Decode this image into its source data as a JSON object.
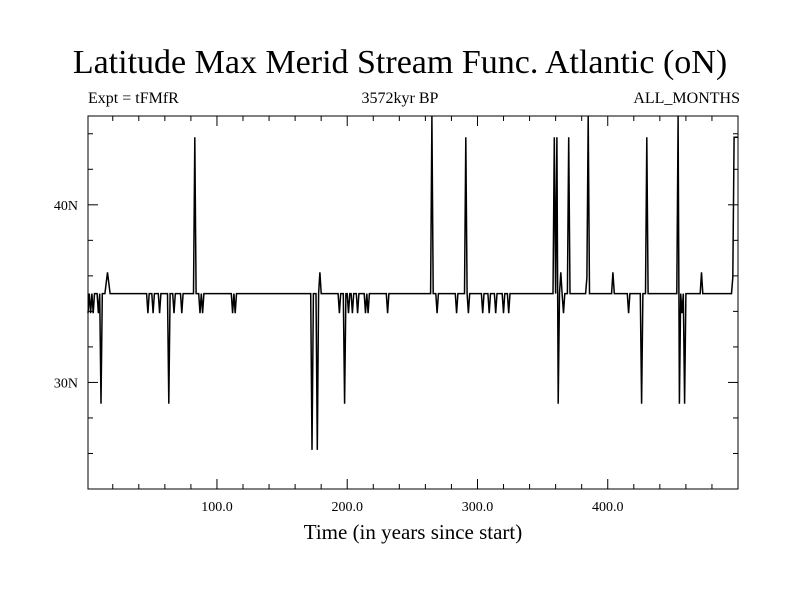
{
  "chart_data": {
    "type": "line",
    "title": "Latitude Max Merid Stream Func. Atlantic (oN)",
    "subtitle_left": "Expt = tFMfR",
    "subtitle_center": "3572kyr BP",
    "subtitle_right": "ALL_MONTHS",
    "xlabel": "Time (in years since start)",
    "ylabel": "",
    "xlim": [
      1,
      500
    ],
    "ylim": [
      24,
      45
    ],
    "x_ticks": [
      {
        "value": 100,
        "label": "100.0"
      },
      {
        "value": 200,
        "label": "200.0"
      },
      {
        "value": 300,
        "label": "300.0"
      },
      {
        "value": 400,
        "label": "400.0"
      }
    ],
    "y_ticks": [
      {
        "value": 30,
        "label": "30N"
      },
      {
        "value": 40,
        "label": "40N"
      }
    ],
    "baseline": 35,
    "series": [
      {
        "points": [
          [
            1,
            33.9
          ],
          [
            2,
            35
          ],
          [
            3,
            33.9
          ],
          [
            4,
            35
          ],
          [
            5,
            33.9
          ],
          [
            6,
            35
          ],
          [
            8,
            35
          ],
          [
            9,
            33.9
          ],
          [
            10,
            35
          ],
          [
            11,
            28.8
          ],
          [
            12,
            35
          ],
          [
            14,
            35
          ],
          [
            16,
            36.2
          ],
          [
            18,
            35
          ],
          [
            46,
            35
          ],
          [
            47,
            33.9
          ],
          [
            48,
            35
          ],
          [
            50,
            35
          ],
          [
            51,
            33.9
          ],
          [
            52,
            35
          ],
          [
            55,
            35
          ],
          [
            56,
            33.9
          ],
          [
            57,
            35
          ],
          [
            62,
            35
          ],
          [
            63,
            28.8
          ],
          [
            64,
            35
          ],
          [
            66,
            35
          ],
          [
            67,
            33.9
          ],
          [
            68,
            35
          ],
          [
            72,
            35
          ],
          [
            73,
            33.9
          ],
          [
            74,
            35
          ],
          [
            82,
            35
          ],
          [
            83,
            43.8
          ],
          [
            84,
            35
          ],
          [
            86,
            35
          ],
          [
            87,
            33.9
          ],
          [
            88,
            35
          ],
          [
            89,
            33.9
          ],
          [
            90,
            35
          ],
          [
            111,
            35
          ],
          [
            112,
            33.9
          ],
          [
            113,
            35
          ],
          [
            114,
            33.9
          ],
          [
            115,
            35
          ],
          [
            172,
            35
          ],
          [
            173,
            26.2
          ],
          [
            174,
            35
          ],
          [
            176,
            35
          ],
          [
            177,
            26.2
          ],
          [
            178,
            35
          ],
          [
            179,
            36.2
          ],
          [
            180,
            35
          ],
          [
            193,
            35
          ],
          [
            194,
            33.9
          ],
          [
            195,
            35
          ],
          [
            197,
            35
          ],
          [
            198,
            28.8
          ],
          [
            199,
            35
          ],
          [
            200,
            35
          ],
          [
            201,
            33.9
          ],
          [
            202,
            35
          ],
          [
            203,
            35
          ],
          [
            204,
            33.9
          ],
          [
            205,
            35
          ],
          [
            207,
            35
          ],
          [
            208,
            33.9
          ],
          [
            209,
            35
          ],
          [
            213,
            35
          ],
          [
            214,
            33.9
          ],
          [
            215,
            35
          ],
          [
            216,
            33.9
          ],
          [
            217,
            35
          ],
          [
            230,
            35
          ],
          [
            231,
            33.9
          ],
          [
            232,
            35
          ],
          [
            264,
            35
          ],
          [
            265,
            45
          ],
          [
            266,
            35
          ],
          [
            268,
            35
          ],
          [
            269,
            33.9
          ],
          [
            270,
            35
          ],
          [
            283,
            35
          ],
          [
            284,
            33.9
          ],
          [
            285,
            35
          ],
          [
            290,
            35
          ],
          [
            291,
            43.8
          ],
          [
            292,
            35
          ],
          [
            293,
            33.9
          ],
          [
            294,
            35
          ],
          [
            303,
            35
          ],
          [
            304,
            33.9
          ],
          [
            305,
            35
          ],
          [
            308,
            35
          ],
          [
            309,
            33.9
          ],
          [
            310,
            35
          ],
          [
            313,
            35
          ],
          [
            314,
            33.9
          ],
          [
            315,
            35
          ],
          [
            319,
            35
          ],
          [
            320,
            33.9
          ],
          [
            321,
            35
          ],
          [
            323,
            35
          ],
          [
            324,
            33.9
          ],
          [
            325,
            35
          ],
          [
            358,
            35
          ],
          [
            359,
            43.8
          ],
          [
            360,
            35
          ],
          [
            361,
            43.8
          ],
          [
            362,
            28.8
          ],
          [
            363,
            35
          ],
          [
            364,
            36.2
          ],
          [
            365,
            35
          ],
          [
            366,
            33.9
          ],
          [
            367,
            35
          ],
          [
            369,
            35
          ],
          [
            370,
            43.8
          ],
          [
            371,
            35
          ],
          [
            383,
            35
          ],
          [
            384,
            35.9
          ],
          [
            385,
            45
          ],
          [
            386,
            35
          ],
          [
            403,
            35
          ],
          [
            404,
            36.2
          ],
          [
            405,
            35
          ],
          [
            415,
            35
          ],
          [
            416,
            33.9
          ],
          [
            417,
            35
          ],
          [
            425,
            35
          ],
          [
            426,
            28.8
          ],
          [
            427,
            35
          ],
          [
            429,
            35
          ],
          [
            430,
            43.8
          ],
          [
            431,
            35
          ],
          [
            453,
            35
          ],
          [
            454,
            45
          ],
          [
            455,
            28.8
          ],
          [
            456,
            35
          ],
          [
            457,
            33.9
          ],
          [
            458,
            35
          ],
          [
            459,
            28.8
          ],
          [
            460,
            35
          ],
          [
            471,
            35
          ],
          [
            472,
            36.2
          ],
          [
            473,
            35
          ],
          [
            495,
            35
          ],
          [
            496,
            35.9
          ],
          [
            497,
            43.8
          ],
          [
            500,
            43.8
          ]
        ]
      }
    ]
  }
}
